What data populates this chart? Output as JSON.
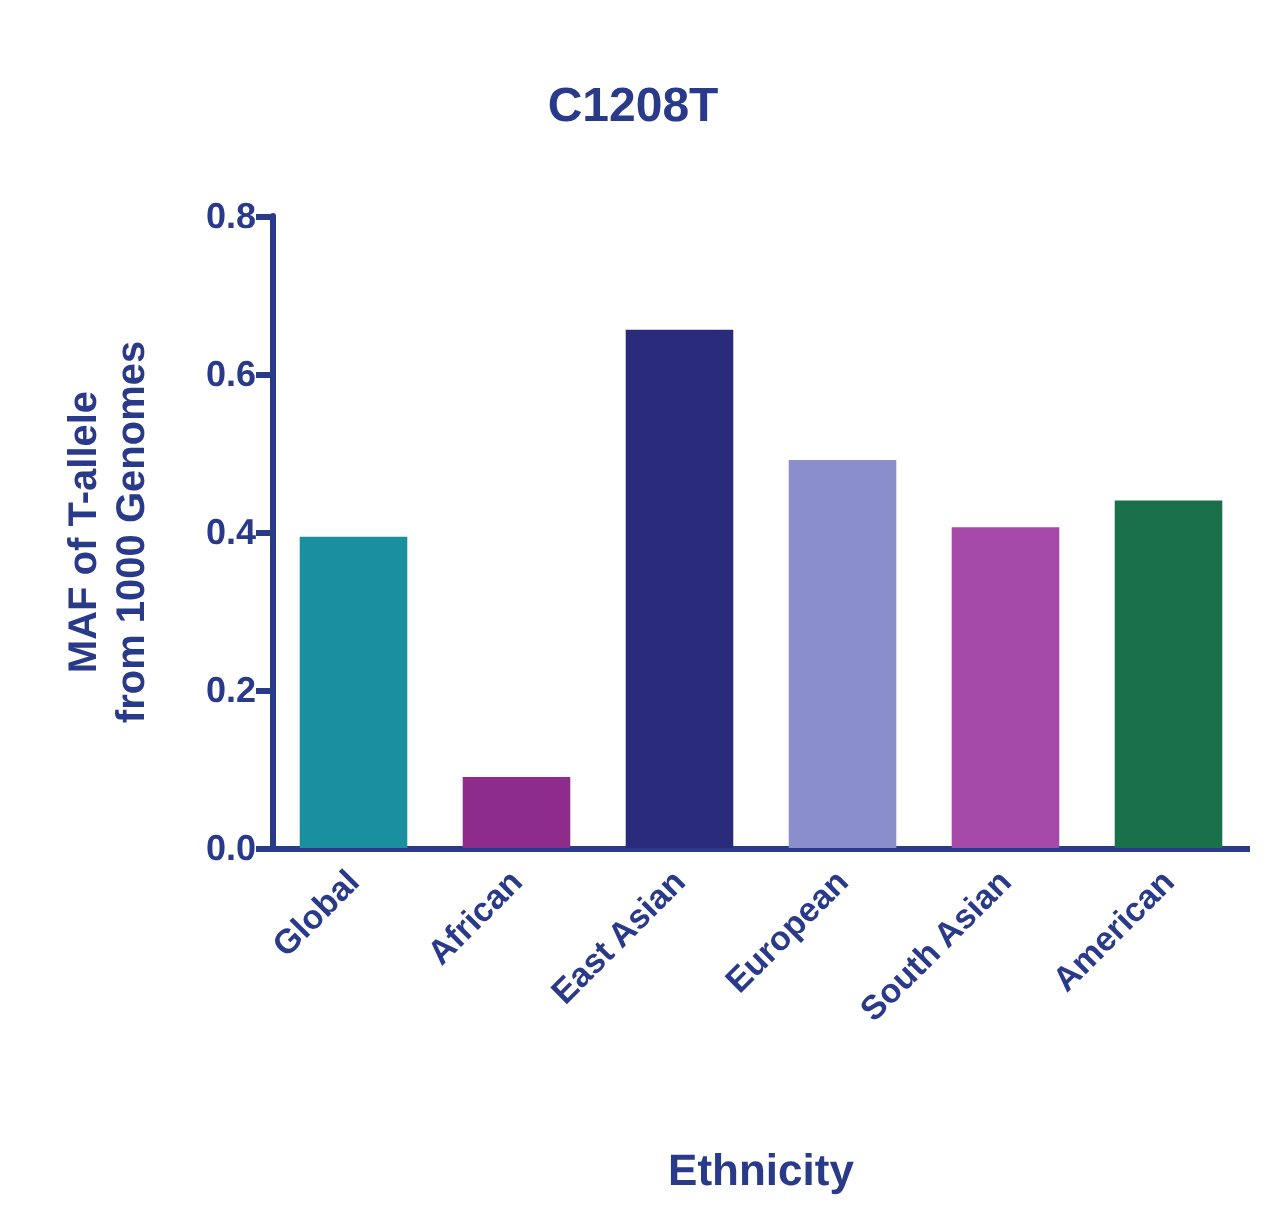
{
  "chart_data": {
    "type": "bar",
    "title": "C1208T",
    "xlabel": "Ethnicity",
    "ylabel": "MAF of T-allele\nfrom 1000 Genomes",
    "categories": [
      "Global",
      "African",
      "East Asian",
      "European",
      "South Asian",
      "American"
    ],
    "values": [
      0.394,
      0.09,
      0.656,
      0.491,
      0.406,
      0.44
    ],
    "colors": [
      "#1a8fa0",
      "#8e2c8c",
      "#2a2a7a",
      "#8a8fcc",
      "#a54aa8",
      "#1a7048"
    ],
    "ylim": [
      0,
      0.8
    ],
    "yticks": [
      {
        "value": 0,
        "label": "0.0"
      },
      0.2,
      0.4,
      0.6,
      0.8
    ],
    "grid": false
  }
}
